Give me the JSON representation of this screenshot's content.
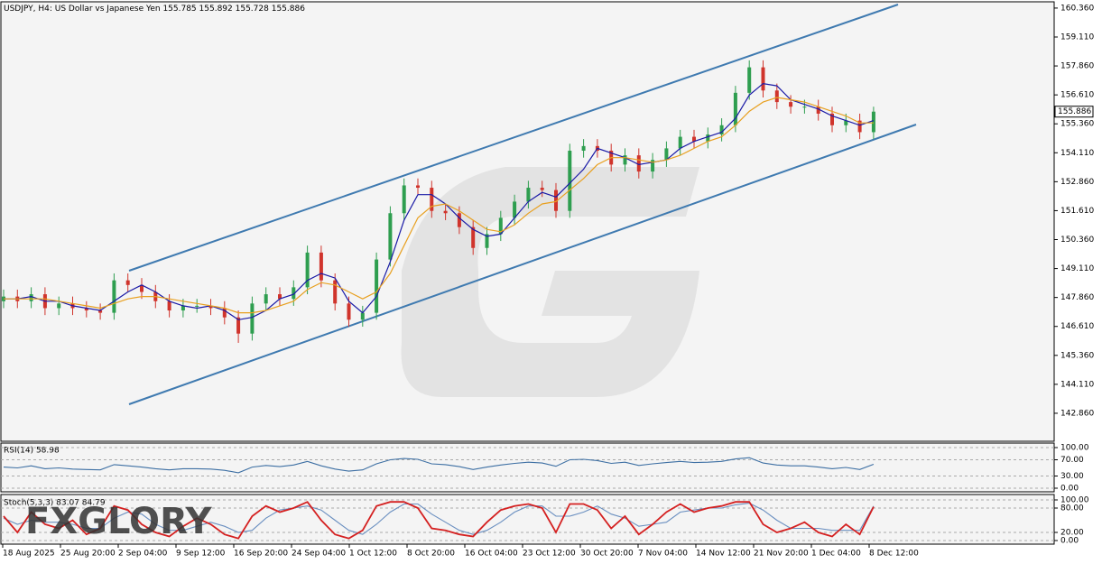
{
  "header": {
    "symbol": "USDJPY, H4:",
    "description": "US Dollar vs Japanese Yen",
    "ohlc": [
      155.785,
      155.892,
      155.728,
      155.886
    ]
  },
  "watermark": "FXGLORY",
  "chart_data": [
    {
      "type": "candlestick",
      "up_color": "#2e9e4f",
      "down_color": "#d0342c",
      "open": [
        147.7,
        147.9,
        147.7,
        148.0,
        147.4,
        147.6,
        147.4,
        147.3,
        147.2,
        148.6,
        148.4,
        148.1,
        147.7,
        147.3,
        147.5,
        147.5,
        147.4,
        147.0,
        146.3,
        147.6,
        148.0,
        147.8,
        148.3,
        149.8,
        148.6,
        147.6,
        146.9,
        147.2,
        149.5,
        151.5,
        152.7,
        152.6,
        151.6,
        151.5,
        150.9,
        150.0,
        150.6,
        151.3,
        152.0,
        152.6,
        152.5,
        151.6,
        154.2,
        154.4,
        154.2,
        153.6,
        154.0,
        153.3,
        153.8,
        154.3,
        154.8,
        154.6,
        154.9,
        155.3,
        156.7,
        157.8,
        156.8,
        156.3,
        156.1,
        156.1,
        155.8,
        155.3,
        155.5,
        155.0
      ],
      "high": [
        148.2,
        148.2,
        148.3,
        148.3,
        147.9,
        147.9,
        147.7,
        147.6,
        148.9,
        148.9,
        148.7,
        148.4,
        148.0,
        147.8,
        147.8,
        147.8,
        147.7,
        147.3,
        147.9,
        148.3,
        148.3,
        148.6,
        150.1,
        150.1,
        148.9,
        147.9,
        147.5,
        149.8,
        151.8,
        153.0,
        153.0,
        152.9,
        151.9,
        151.8,
        151.2,
        150.9,
        151.6,
        152.3,
        152.9,
        152.9,
        152.8,
        154.5,
        154.7,
        154.7,
        154.5,
        154.3,
        154.3,
        154.1,
        154.6,
        155.1,
        155.1,
        155.2,
        155.6,
        157.0,
        158.1,
        158.1,
        157.1,
        156.6,
        156.4,
        156.4,
        156.1,
        155.8,
        155.8,
        156.1
      ],
      "low": [
        147.4,
        147.4,
        147.4,
        147.1,
        147.1,
        147.1,
        147.0,
        146.9,
        146.9,
        148.1,
        147.8,
        147.4,
        147.0,
        147.0,
        147.2,
        147.1,
        146.7,
        145.9,
        146.0,
        147.3,
        147.5,
        147.5,
        148.0,
        148.3,
        147.3,
        146.6,
        146.6,
        146.9,
        149.2,
        151.2,
        152.3,
        151.3,
        151.2,
        150.6,
        149.7,
        149.7,
        150.3,
        151.0,
        151.7,
        152.2,
        151.3,
        151.3,
        153.9,
        153.9,
        153.3,
        153.3,
        153.0,
        153.0,
        153.5,
        154.0,
        154.3,
        154.3,
        154.6,
        155.0,
        156.4,
        156.5,
        156.0,
        155.8,
        155.8,
        155.5,
        155.0,
        155.0,
        154.7,
        154.7
      ],
      "close": [
        147.9,
        147.7,
        148.0,
        147.4,
        147.6,
        147.4,
        147.3,
        147.2,
        148.6,
        148.4,
        148.1,
        147.7,
        147.3,
        147.5,
        147.5,
        147.4,
        147.0,
        146.3,
        147.6,
        148.0,
        147.8,
        148.3,
        149.8,
        148.6,
        147.6,
        146.9,
        147.2,
        149.5,
        151.5,
        152.7,
        152.6,
        151.6,
        151.5,
        150.9,
        150.0,
        150.6,
        151.3,
        152.0,
        152.6,
        152.5,
        151.6,
        154.2,
        154.4,
        154.2,
        153.6,
        154.0,
        153.3,
        153.8,
        154.3,
        154.8,
        154.6,
        154.9,
        155.3,
        156.7,
        157.8,
        156.8,
        156.3,
        156.1,
        156.1,
        155.8,
        155.3,
        155.5,
        155.0,
        155.886
      ],
      "series": [
        {
          "color": "#1a1aa6",
          "values": [
            147.8,
            147.8,
            147.9,
            147.7,
            147.7,
            147.5,
            147.4,
            147.3,
            147.7,
            148.1,
            148.4,
            148.1,
            147.7,
            147.5,
            147.4,
            147.5,
            147.3,
            146.9,
            147.0,
            147.3,
            147.8,
            148.0,
            148.6,
            148.9,
            148.7,
            147.7,
            147.2,
            147.9,
            149.4,
            151.2,
            152.3,
            152.3,
            151.9,
            151.3,
            150.8,
            150.5,
            150.6,
            151.3,
            152.0,
            152.4,
            152.2,
            152.8,
            153.4,
            154.3,
            154.1,
            153.9,
            153.6,
            153.7,
            153.8,
            154.3,
            154.6,
            154.8,
            155.0,
            155.6,
            156.6,
            157.1,
            157.0,
            156.4,
            156.2,
            156.0,
            155.7,
            155.5,
            155.3,
            155.5
          ]
        },
        {
          "color": "#e8a020",
          "values": [
            147.8,
            147.8,
            147.8,
            147.8,
            147.7,
            147.6,
            147.5,
            147.4,
            147.6,
            147.8,
            147.9,
            147.9,
            147.8,
            147.7,
            147.6,
            147.5,
            147.4,
            147.2,
            147.2,
            147.3,
            147.5,
            147.7,
            148.2,
            148.5,
            148.4,
            148.1,
            147.8,
            148.1,
            148.9,
            150.1,
            151.3,
            151.8,
            151.9,
            151.6,
            151.2,
            150.8,
            150.7,
            151.0,
            151.5,
            151.9,
            152.0,
            152.5,
            153.0,
            153.6,
            153.9,
            153.9,
            153.8,
            153.7,
            153.8,
            154.0,
            154.3,
            154.6,
            154.8,
            155.3,
            155.9,
            156.3,
            156.5,
            156.4,
            156.3,
            156.1,
            155.9,
            155.7,
            155.4,
            155.4
          ]
        }
      ],
      "ylim": [
        141.65,
        160.63
      ],
      "yticks": [
        {
          "value": 160.36,
          "label": "160.360"
        },
        {
          "value": 159.11,
          "label": "159.110"
        },
        {
          "value": 157.86,
          "label": "157.860"
        },
        {
          "value": 156.61,
          "label": "156.610"
        },
        {
          "value": 155.36,
          "label": "155.360"
        },
        {
          "value": 154.11,
          "label": "154.110"
        },
        {
          "value": 152.86,
          "label": "152.860"
        },
        {
          "value": 151.61,
          "label": "151.610"
        },
        {
          "value": 150.36,
          "label": "150.360"
        },
        {
          "value": 149.11,
          "label": "149.110"
        },
        {
          "value": 147.86,
          "label": "147.860"
        },
        {
          "value": 146.61,
          "label": "146.610"
        },
        {
          "value": 145.36,
          "label": "145.360"
        },
        {
          "value": 144.11,
          "label": "144.110"
        },
        {
          "value": 142.86,
          "label": "142.860"
        }
      ],
      "x_labels": [
        "18 Aug 2025",
        "25 Aug 20:00",
        "2 Sep 04:00",
        "9 Sep 12:00",
        "16 Sep 20:00",
        "24 Sep 04:00",
        "1 Oct 12:00",
        "8 Oct 20:00",
        "16 Oct 04:00",
        "23 Oct 12:00",
        "30 Oct 20:00",
        "7 Nov 04:00",
        "14 Nov 12:00",
        "21 Nov 20:00",
        "1 Dec 04:00",
        "8 Dec 12:00"
      ]
    },
    {
      "type": "line",
      "title": "RSI(14) 58.98",
      "series": [
        {
          "color": "#3d6fa3",
          "values": [
            52,
            50,
            55,
            48,
            50,
            47,
            46,
            45,
            58,
            55,
            52,
            48,
            45,
            48,
            48,
            47,
            44,
            38,
            52,
            56,
            53,
            57,
            66,
            55,
            47,
            42,
            45,
            60,
            70,
            73,
            71,
            60,
            58,
            53,
            46,
            52,
            57,
            61,
            64,
            62,
            54,
            70,
            71,
            68,
            61,
            64,
            56,
            60,
            63,
            66,
            63,
            64,
            66,
            72,
            75,
            62,
            57,
            55,
            55,
            52,
            48,
            51,
            46,
            58.98
          ]
        }
      ],
      "ylim": [
        -8.9,
        111.1
      ],
      "yticks": [
        {
          "value": 100,
          "label": "100.00"
        },
        {
          "value": 70,
          "label": "70.00"
        },
        {
          "value": 30,
          "label": "30.00"
        },
        {
          "value": 0,
          "label": "0.00"
        }
      ]
    },
    {
      "type": "line",
      "title": "Stoch(5,3,3) 83.07 84.79",
      "series": [
        {
          "color": "#6a8fc0",
          "values": [
            55,
            40,
            50,
            45,
            45,
            40,
            30,
            30,
            55,
            70,
            65,
            40,
            25,
            25,
            35,
            45,
            35,
            20,
            25,
            55,
            75,
            80,
            85,
            75,
            50,
            25,
            15,
            40,
            70,
            90,
            90,
            65,
            45,
            25,
            15,
            25,
            45,
            70,
            85,
            85,
            60,
            60,
            70,
            85,
            65,
            55,
            35,
            40,
            45,
            70,
            75,
            80,
            80,
            88,
            92,
            75,
            50,
            30,
            30,
            30,
            25,
            25,
            25,
            84.79
          ]
        },
        {
          "color": "#d42020",
          "values": [
            60,
            20,
            70,
            40,
            30,
            50,
            15,
            30,
            85,
            75,
            40,
            20,
            10,
            35,
            55,
            40,
            15,
            5,
            60,
            85,
            70,
            80,
            95,
            50,
            15,
            5,
            25,
            85,
            95,
            95,
            80,
            30,
            25,
            15,
            10,
            45,
            75,
            85,
            90,
            80,
            20,
            90,
            90,
            75,
            30,
            60,
            15,
            40,
            70,
            90,
            70,
            80,
            85,
            95,
            95,
            40,
            20,
            30,
            45,
            20,
            10,
            40,
            15,
            83.07
          ]
        }
      ],
      "ylim": [
        -8.9,
        113.3
      ],
      "yticks": [
        {
          "value": 100,
          "label": "100.00"
        },
        {
          "value": 80,
          "label": "80.00"
        },
        {
          "value": 20,
          "label": "20.00"
        },
        {
          "value": 0,
          "label": "0.00"
        }
      ]
    }
  ]
}
